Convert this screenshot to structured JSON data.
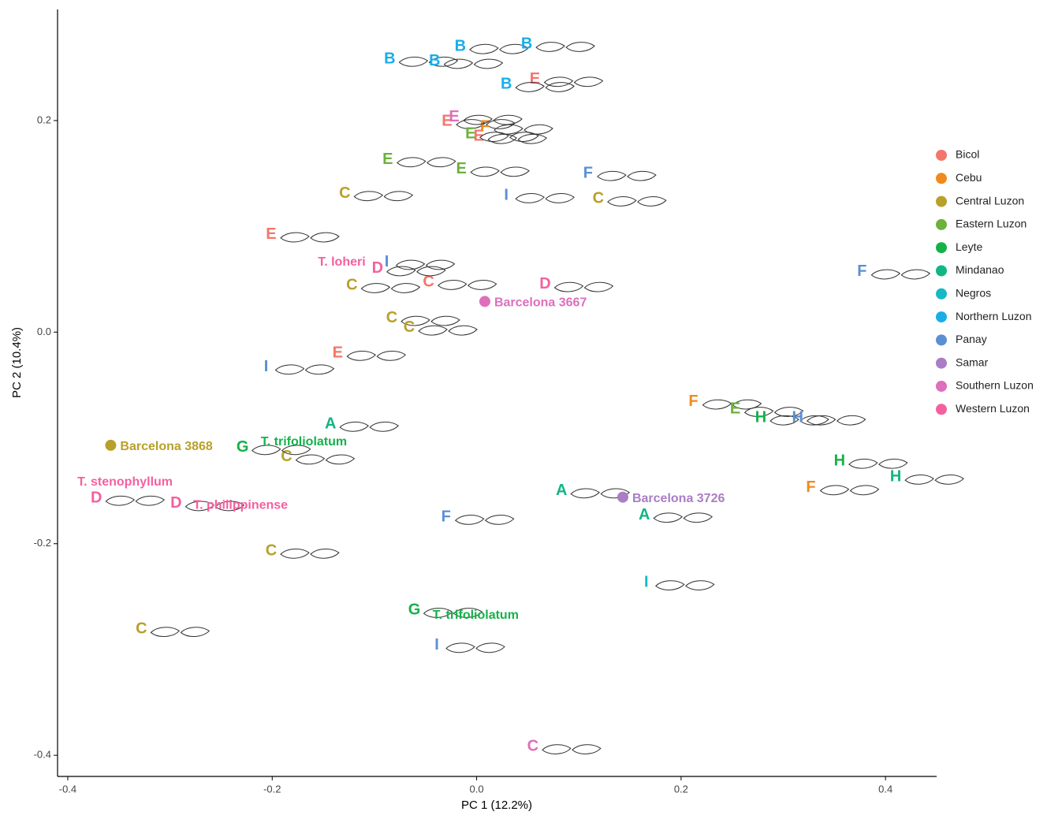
{
  "chart_data": {
    "type": "scatter",
    "xlabel": "PC 1 (12.2%)",
    "ylabel": "PC 2 (10.4%)",
    "xlim": [
      -0.41,
      0.45
    ],
    "ylim": [
      -0.42,
      0.305
    ],
    "xticks": [
      -0.4,
      -0.2,
      {
        "value": 0,
        "label": "0.0"
      },
      0.2,
      0.4
    ],
    "yticks": [
      -0.4,
      -0.2,
      {
        "value": 0,
        "label": "0.0"
      },
      0.2
    ],
    "legend": "right",
    "series": [
      {
        "name": "Bicol",
        "color": "#f4766b",
        "x": [
          0.057,
          -0.029,
          0.002,
          -0.201,
          -0.136,
          -0.047
        ],
        "values": [
          0.239,
          0.199,
          0.185,
          0.092,
          -0.02,
          0.047
        ],
        "labels": [
          "E",
          "E",
          "E",
          "E",
          "E",
          "C"
        ]
      },
      {
        "name": "Cebu",
        "color": "#f08a1c",
        "x": [
          0.008,
          0.212,
          0.327
        ],
        "values": [
          0.194,
          -0.066,
          -0.147
        ],
        "labels": [
          "F",
          "F",
          "F"
        ]
      },
      {
        "name": "Central Luzon",
        "color": "#b9a02a",
        "x": [
          -0.129,
          0.119,
          -0.122,
          -0.083,
          -0.066,
          -0.186,
          -0.201,
          -0.328
        ],
        "values": [
          0.131,
          0.126,
          0.044,
          0.013,
          0.004,
          -0.118,
          -0.207,
          -0.281
        ],
        "labels": [
          "C",
          "C",
          "C",
          "C",
          "C",
          "C",
          "C",
          "C"
        ]
      },
      {
        "name": "Eastern Luzon",
        "color": "#6cb13c",
        "x": [
          -0.006,
          -0.087,
          -0.015,
          0.253
        ],
        "values": [
          0.187,
          0.163,
          0.154,
          -0.073
        ],
        "labels": [
          "E",
          "E",
          "E",
          "E"
        ]
      },
      {
        "name": "Leyte",
        "color": "#15b24a",
        "x": [
          -0.229,
          -0.061,
          0.278,
          0.355
        ],
        "values": [
          -0.109,
          -0.263,
          -0.081,
          -0.122
        ],
        "labels": [
          "G",
          "G",
          "H",
          "H"
        ]
      },
      {
        "name": "Mindanao",
        "color": "#12b584",
        "x": [
          -0.143,
          0.083,
          0.164,
          0.41
        ],
        "values": [
          -0.087,
          -0.15,
          -0.173,
          -0.137
        ],
        "labels": [
          "A",
          "A",
          "A",
          "H"
        ]
      },
      {
        "name": "Negros",
        "color": "#16b9c4",
        "x": [
          0.166
        ],
        "values": [
          -0.237
        ],
        "labels": [
          "I"
        ]
      },
      {
        "name": "Northern Luzon",
        "color": "#19aee8",
        "x": [
          -0.085,
          -0.016,
          -0.041,
          0.049,
          0.029
        ],
        "values": [
          0.258,
          0.27,
          0.256,
          0.272,
          0.234
        ],
        "labels": [
          "B",
          "B",
          "B",
          "B",
          "B"
        ]
      },
      {
        "name": "Panay",
        "color": "#5b8fd4",
        "x": [
          0.109,
          0.029,
          -0.088,
          -0.206,
          0.314,
          0.377,
          -0.03,
          -0.039
        ],
        "values": [
          0.15,
          0.129,
          0.066,
          -0.033,
          -0.081,
          0.057,
          -0.175,
          -0.296
        ],
        "labels": [
          "F",
          "I",
          "I",
          "I",
          "H",
          "F",
          "F",
          "I"
        ]
      },
      {
        "name": "Samar",
        "color": "#a97ec4",
        "x": [],
        "values": [],
        "labels": []
      },
      {
        "name": "Southern Luzon",
        "color": "#dd6fbb",
        "x": [
          -0.022,
          0.055
        ],
        "values": [
          0.203,
          -0.392
        ],
        "labels": [
          "E",
          "C"
        ]
      },
      {
        "name": "Western Luzon",
        "color": "#f5609f",
        "x": [
          -0.097,
          0.067,
          -0.372,
          -0.294
        ],
        "values": [
          0.06,
          0.045,
          -0.157,
          -0.162
        ],
        "labels": [
          "D",
          "D",
          "D",
          "D"
        ]
      }
    ],
    "specimens": [
      {
        "label": "Barcelona 3868",
        "color": "#b9a02a",
        "x": -0.358,
        "y": -0.107
      },
      {
        "label": "Barcelona 3667",
        "color": "#dd6fbb",
        "x": 0.008,
        "y": 0.029
      },
      {
        "label": "Barcelona 3726",
        "color": "#a97ec4",
        "x": 0.143,
        "y": -0.156
      }
    ],
    "annotations": [
      {
        "text": "T. loheri",
        "color": "#f5609f",
        "x": -0.132,
        "y": 0.066
      },
      {
        "text": "T. trifoliolatum",
        "color": "#15b24a",
        "x": -0.169,
        "y": -0.104
      },
      {
        "text": "T. trifoliolatum",
        "color": "#15b24a",
        "x": -0.001,
        "y": -0.268
      },
      {
        "text": "T. stenophyllum",
        "color": "#f5609f",
        "x": -0.344,
        "y": -0.142
      },
      {
        "text": "T. philippinense",
        "color": "#f5609f",
        "x": -0.231,
        "y": -0.164
      }
    ]
  }
}
